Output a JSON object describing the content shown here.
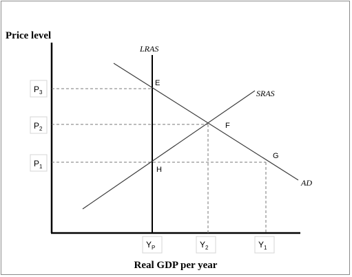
{
  "diagram": {
    "y_axis_title": "Price level",
    "x_axis_title": "Real GDP per year",
    "price_ticks": [
      {
        "id": "p3",
        "base": "P",
        "sub": "3"
      },
      {
        "id": "p2",
        "base": "P",
        "sub": "2"
      },
      {
        "id": "p1",
        "base": "P",
        "sub": "1"
      }
    ],
    "gdp_ticks": [
      {
        "id": "yp",
        "base": "Y",
        "sub": "P"
      },
      {
        "id": "y2",
        "base": "Y",
        "sub": "2"
      },
      {
        "id": "y1",
        "base": "Y",
        "sub": "1"
      }
    ],
    "curves": {
      "lras": "LRAS",
      "sras": "SRAS",
      "ad": "AD"
    },
    "points": {
      "e": "E",
      "f": "F",
      "g": "G",
      "h": "H"
    },
    "colors": {
      "axis": "#000000",
      "curve": "#3a3a3a",
      "dashed": "#777777",
      "label_box_border": "#d4d4d4"
    }
  }
}
